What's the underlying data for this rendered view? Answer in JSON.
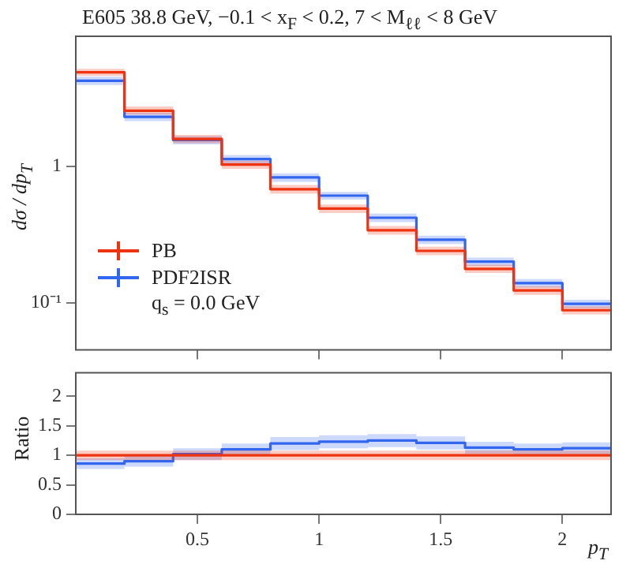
{
  "chart_data": [
    {
      "type": "step",
      "title": "E605 38.8 GeV, −0.1 < x$_{F}$ < 0.2, 7 < M$_{ℓℓ}$ < 8 GeV",
      "ylabel": "dσ / dp$_{T}$",
      "x": [
        0,
        0.2,
        0.4,
        0.6,
        0.8,
        1.0,
        1.2,
        1.4,
        1.6,
        1.8,
        2.0,
        2.2
      ],
      "xlim": [
        0,
        2.2
      ],
      "xticks": [
        0.5,
        1,
        1.5,
        2
      ],
      "ylim": [
        0.045,
        9
      ],
      "yticks": [
        {
          "value": 0.1,
          "label": "10⁻¹"
        },
        1
      ],
      "log": true,
      "grid": false,
      "legend": "left",
      "tick_labels": "y",
      "annotations": [
        "q$_{s}$ = 0.0 GeV"
      ],
      "series": [
        {
          "name": "PB",
          "color": "#ee3311",
          "values": [
            4.9,
            2.56,
            1.59,
            1.03,
            0.68,
            0.49,
            0.34,
            0.24,
            0.177,
            0.123,
            0.088,
            0.088
          ],
          "lower": [
            4.6,
            2.4,
            1.48,
            0.96,
            0.63,
            0.455,
            0.315,
            0.223,
            0.165,
            0.114,
            0.082,
            0.082
          ],
          "upper": [
            5.2,
            2.75,
            1.7,
            1.1,
            0.73,
            0.525,
            0.365,
            0.257,
            0.19,
            0.132,
            0.094,
            0.094
          ]
        },
        {
          "name": "PDF2ISR",
          "color": "#3366ee",
          "values": [
            4.25,
            2.31,
            1.56,
            1.13,
            0.83,
            0.61,
            0.42,
            0.29,
            0.2,
            0.139,
            0.098,
            0.098
          ],
          "lower": [
            3.95,
            2.15,
            1.45,
            1.05,
            0.77,
            0.57,
            0.39,
            0.27,
            0.186,
            0.129,
            0.091,
            0.091
          ],
          "upper": [
            4.55,
            2.47,
            1.67,
            1.21,
            0.89,
            0.65,
            0.45,
            0.31,
            0.214,
            0.149,
            0.105,
            0.105
          ]
        }
      ]
    },
    {
      "type": "step",
      "ylabel": "Ratio",
      "xlabel": "p$_{T}$",
      "x": [
        0,
        0.2,
        0.4,
        0.6,
        0.8,
        1.0,
        1.2,
        1.4,
        1.6,
        1.8,
        2.0,
        2.2
      ],
      "xlim": [
        0,
        2.2
      ],
      "xticks": [
        0.5,
        1,
        1.5,
        2
      ],
      "ylim": [
        0,
        2.4
      ],
      "yticks": [
        0,
        0.5,
        1,
        1.5,
        2
      ],
      "grid": false,
      "series": [
        {
          "color": "#ee3311",
          "values": [
            1,
            1,
            1,
            1,
            1,
            1,
            1,
            1,
            1,
            1,
            1,
            1
          ],
          "lower": [
            0.92,
            0.92,
            0.92,
            0.92,
            0.92,
            0.92,
            0.92,
            0.92,
            0.92,
            0.92,
            0.92,
            0.92
          ],
          "upper": [
            1.08,
            1.08,
            1.08,
            1.08,
            1.08,
            1.08,
            1.08,
            1.08,
            1.08,
            1.08,
            1.08,
            1.08
          ]
        },
        {
          "color": "#3366ee",
          "values": [
            0.86,
            0.9,
            1.02,
            1.1,
            1.2,
            1.23,
            1.25,
            1.21,
            1.13,
            1.1,
            1.12,
            1.12
          ],
          "lower": [
            0.77,
            0.81,
            0.92,
            1.0,
            1.09,
            1.12,
            1.14,
            1.1,
            1.03,
            1.0,
            1.02,
            1.02
          ],
          "upper": [
            0.95,
            0.99,
            1.12,
            1.2,
            1.31,
            1.34,
            1.36,
            1.32,
            1.23,
            1.2,
            1.22,
            1.22
          ]
        }
      ]
    }
  ]
}
